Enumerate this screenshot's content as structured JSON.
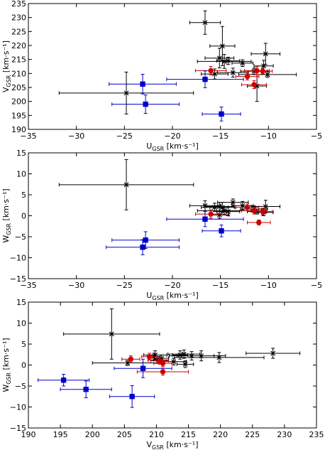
{
  "chart_data": [
    {
      "type": "scatter",
      "xlabel": "U",
      "xlabel_sub": "GSR",
      "xlabel_unit": " [km·s⁻¹]",
      "ylabel": "V",
      "ylabel_sub": "GSR",
      "ylabel_unit": " [km·s⁻¹]",
      "xlim": [
        -35,
        -5
      ],
      "ylim": [
        190,
        235
      ],
      "xticks": [
        -35,
        -30,
        -25,
        -20,
        -15,
        -10,
        -5
      ],
      "yticks": [
        190,
        195,
        200,
        205,
        210,
        215,
        220,
        225,
        230,
        235
      ],
      "series": [
        {
          "color": "#000000",
          "marker": "x",
          "points": [
            {
              "x": -24.8,
              "y": 203.0,
              "xerr": 7.0,
              "yerr": 7.5
            },
            {
              "x": -16.6,
              "y": 228.2,
              "xerr": 1.6,
              "yerr": 4.2
            },
            {
              "x": -15.1,
              "y": 215.5,
              "xerr": 1.5,
              "yerr": 3.5
            },
            {
              "x": -14.8,
              "y": 219.8,
              "xerr": 1.3,
              "yerr": 7.0
            },
            {
              "x": -14.6,
              "y": 214.3,
              "xerr": 2.8,
              "yerr": 2.5
            },
            {
              "x": -15.6,
              "y": 209.8,
              "xerr": 1.4,
              "yerr": 1.8
            },
            {
              "x": -13.7,
              "y": 210.3,
              "xerr": 1.6,
              "yerr": 1.6
            },
            {
              "x": -12.7,
              "y": 213.7,
              "xerr": 1.1,
              "yerr": 1.2
            },
            {
              "x": -11.5,
              "y": 210.8,
              "xerr": 1.4,
              "yerr": 1.1
            },
            {
              "x": -10.3,
              "y": 217.0,
              "xerr": 1.5,
              "yerr": 3.8
            },
            {
              "x": -10.5,
              "y": 212.7,
              "xerr": 1.0,
              "yerr": 2.0
            },
            {
              "x": -11.2,
              "y": 205.5,
              "xerr": 1.0,
              "yerr": 5.5
            },
            {
              "x": -14.2,
              "y": 214.5,
              "xerr": 1.2,
              "yerr": 1.3
            },
            {
              "x": -10.1,
              "y": 209.6,
              "xerr": 3.0,
              "yerr": 1.0
            }
          ]
        },
        {
          "color": "#cc0000",
          "marker": "o",
          "points": [
            {
              "x": -16.0,
              "y": 211.0,
              "xerr": 1.6,
              "yerr": 1.5
            },
            {
              "x": -12.2,
              "y": 208.9,
              "xerr": 1.2,
              "yerr": 1.2
            },
            {
              "x": -11.5,
              "y": 206.0,
              "xerr": 1.3,
              "yerr": 1.4
            },
            {
              "x": -11.2,
              "y": 211.0,
              "xerr": 1.3,
              "yerr": 1.4
            },
            {
              "x": -10.6,
              "y": 210.8,
              "xerr": 1.0,
              "yerr": 1.0
            }
          ]
        },
        {
          "color": "#0000cc",
          "marker": "s",
          "points": [
            {
              "x": -23.1,
              "y": 206.2,
              "xerr": 3.5,
              "yerr": 3.5
            },
            {
              "x": -22.8,
              "y": 199.0,
              "xerr": 3.5,
              "yerr": 3.3
            },
            {
              "x": -16.6,
              "y": 207.9,
              "xerr": 4.0,
              "yerr": 3.0
            },
            {
              "x": -14.9,
              "y": 195.5,
              "xerr": 2.0,
              "yerr": 2.5
            }
          ]
        }
      ]
    },
    {
      "type": "scatter",
      "xlabel": "U",
      "xlabel_sub": "GSR",
      "xlabel_unit": " [km·s⁻¹]",
      "ylabel": "W",
      "ylabel_sub": "GSR",
      "ylabel_unit": " [km·s⁻¹]",
      "xlim": [
        -35,
        -5
      ],
      "ylim": [
        -15,
        15
      ],
      "xticks": [
        -35,
        -30,
        -25,
        -20,
        -15,
        -10,
        -5
      ],
      "yticks": [
        -15,
        -10,
        -5,
        0,
        5,
        10,
        15
      ],
      "series": [
        {
          "color": "#000000",
          "marker": "x",
          "points": [
            {
              "x": -24.8,
              "y": 7.4,
              "xerr": 7.0,
              "yerr": 6.0
            },
            {
              "x": -16.6,
              "y": 2.4,
              "xerr": 1.6,
              "yerr": 1.2
            },
            {
              "x": -15.1,
              "y": 2.2,
              "xerr": 1.5,
              "yerr": 1.0
            },
            {
              "x": -14.8,
              "y": 2.0,
              "xerr": 1.3,
              "yerr": 1.2
            },
            {
              "x": -14.6,
              "y": 1.2,
              "xerr": 2.8,
              "yerr": 1.0
            },
            {
              "x": -15.6,
              "y": 2.0,
              "xerr": 1.4,
              "yerr": 1.0
            },
            {
              "x": -13.7,
              "y": 3.2,
              "xerr": 1.6,
              "yerr": 0.8
            },
            {
              "x": -12.7,
              "y": 2.4,
              "xerr": 1.1,
              "yerr": 1.0
            },
            {
              "x": -11.5,
              "y": 1.6,
              "xerr": 1.4,
              "yerr": 0.8
            },
            {
              "x": -10.3,
              "y": 2.2,
              "xerr": 1.5,
              "yerr": 1.5
            },
            {
              "x": -10.5,
              "y": 0.8,
              "xerr": 1.0,
              "yerr": 0.8
            },
            {
              "x": -11.2,
              "y": 1.0,
              "xerr": 1.0,
              "yerr": 0.6
            },
            {
              "x": -14.2,
              "y": 1.0,
              "xerr": 1.2,
              "yerr": 1.0
            },
            {
              "x": -15.1,
              "y": 0.2,
              "xerr": 1.0,
              "yerr": 0.8
            }
          ]
        },
        {
          "color": "#cc0000",
          "marker": "o",
          "points": [
            {
              "x": -16.0,
              "y": 0.4,
              "xerr": 1.6,
              "yerr": 1.0
            },
            {
              "x": -12.2,
              "y": 2.0,
              "xerr": 1.2,
              "yerr": 0.8
            },
            {
              "x": -11.5,
              "y": 1.2,
              "xerr": 1.3,
              "yerr": 0.8
            },
            {
              "x": -10.6,
              "y": 1.0,
              "xerr": 1.0,
              "yerr": 0.8
            },
            {
              "x": -11.0,
              "y": -1.6,
              "xerr": 1.2,
              "yerr": 0.6
            }
          ]
        },
        {
          "color": "#0000cc",
          "marker": "s",
          "points": [
            {
              "x": -23.1,
              "y": -7.5,
              "xerr": 3.8,
              "yerr": 1.8
            },
            {
              "x": -22.8,
              "y": -5.8,
              "xerr": 3.5,
              "yerr": 2.0
            },
            {
              "x": -16.6,
              "y": -0.8,
              "xerr": 4.0,
              "yerr": 1.8
            },
            {
              "x": -14.9,
              "y": -3.6,
              "xerr": 2.0,
              "yerr": 1.4
            }
          ]
        }
      ]
    },
    {
      "type": "scatter",
      "xlabel": "V",
      "xlabel_sub": "GSR",
      "xlabel_unit": " [km·s⁻¹]",
      "ylabel": "W",
      "ylabel_sub": "GSR",
      "ylabel_unit": " [km·s⁻¹]",
      "xlim": [
        190,
        235
      ],
      "ylim": [
        -15,
        15
      ],
      "xticks": [
        190,
        195,
        200,
        205,
        210,
        215,
        220,
        225,
        230,
        235
      ],
      "yticks": [
        -15,
        -10,
        -5,
        0,
        5,
        10,
        15
      ],
      "series": [
        {
          "color": "#000000",
          "marker": "x",
          "points": [
            {
              "x": 203.0,
              "y": 7.4,
              "xerr": 7.5,
              "yerr": 6.0
            },
            {
              "x": 228.2,
              "y": 2.8,
              "xerr": 4.2,
              "yerr": 1.2
            },
            {
              "x": 215.5,
              "y": 2.2,
              "xerr": 3.5,
              "yerr": 1.0
            },
            {
              "x": 219.8,
              "y": 1.8,
              "xerr": 7.0,
              "yerr": 1.2
            },
            {
              "x": 214.3,
              "y": 2.6,
              "xerr": 2.5,
              "yerr": 1.0
            },
            {
              "x": 209.8,
              "y": 2.4,
              "xerr": 1.8,
              "yerr": 1.0
            },
            {
              "x": 210.3,
              "y": 1.2,
              "xerr": 1.6,
              "yerr": 0.8
            },
            {
              "x": 213.7,
              "y": 2.4,
              "xerr": 1.2,
              "yerr": 1.0
            },
            {
              "x": 210.8,
              "y": 1.6,
              "xerr": 1.1,
              "yerr": 0.8
            },
            {
              "x": 217.0,
              "y": 2.2,
              "xerr": 3.8,
              "yerr": 1.2
            },
            {
              "x": 212.7,
              "y": 0.8,
              "xerr": 2.0,
              "yerr": 0.8
            },
            {
              "x": 205.5,
              "y": 0.5,
              "xerr": 5.5,
              "yerr": 0.6
            },
            {
              "x": 214.5,
              "y": 0.2,
              "xerr": 1.3,
              "yerr": 0.8
            },
            {
              "x": 209.6,
              "y": 2.0,
              "xerr": 1.0,
              "yerr": 0.8
            }
          ]
        },
        {
          "color": "#cc0000",
          "marker": "o",
          "points": [
            {
              "x": 206.0,
              "y": 1.4,
              "xerr": 1.4,
              "yerr": 0.8
            },
            {
              "x": 208.9,
              "y": 2.0,
              "xerr": 1.2,
              "yerr": 0.8
            },
            {
              "x": 210.5,
              "y": 1.0,
              "xerr": 1.4,
              "yerr": 0.8
            },
            {
              "x": 211.0,
              "y": 0.4,
              "xerr": 1.4,
              "yerr": 0.8
            },
            {
              "x": 211.0,
              "y": -1.6,
              "xerr": 4.0,
              "yerr": 0.8
            }
          ]
        },
        {
          "color": "#0000cc",
          "marker": "s",
          "points": [
            {
              "x": 195.5,
              "y": -3.6,
              "xerr": 4.0,
              "yerr": 1.4
            },
            {
              "x": 199.0,
              "y": -5.8,
              "xerr": 4.0,
              "yerr": 2.0
            },
            {
              "x": 206.2,
              "y": -7.5,
              "xerr": 3.5,
              "yerr": 2.6
            },
            {
              "x": 207.9,
              "y": -0.8,
              "xerr": 4.5,
              "yerr": 2.2
            }
          ]
        }
      ]
    }
  ]
}
